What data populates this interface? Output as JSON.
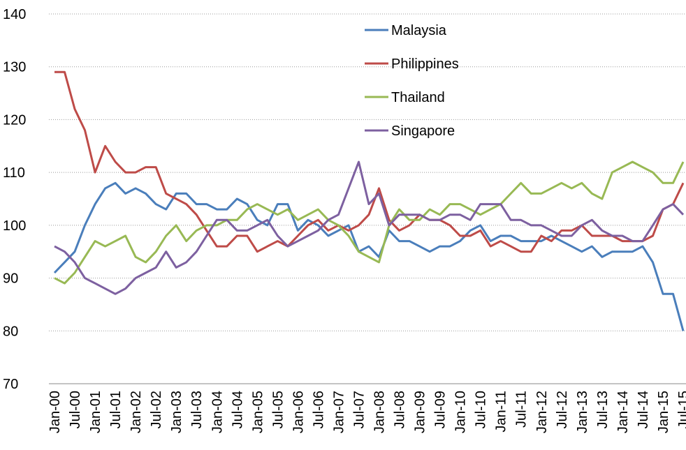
{
  "chart_data": {
    "type": "line",
    "categories": [
      "Jan-00",
      null,
      "Jul-00",
      null,
      "Jan-01",
      null,
      "Jul-01",
      null,
      "Jan-02",
      null,
      "Jul-02",
      null,
      "Jan-03",
      null,
      "Jul-03",
      null,
      "Jan-04",
      null,
      "Jul-04",
      null,
      "Jan-05",
      null,
      "Jul-05",
      null,
      "Jan-06",
      null,
      "Jul-06",
      null,
      "Jan-07",
      null,
      "Jul-07",
      null,
      "Jan-08",
      null,
      "Jul-08",
      null,
      "Jan-09",
      null,
      "Jul-09",
      null,
      "Jan-10",
      null,
      "Jul-10",
      null,
      "Jan-11",
      null,
      "Jul-11",
      null,
      "Jan-12",
      null,
      "Jul-12",
      null,
      "Jan-13",
      null,
      "Jul-13",
      null,
      "Jan-14",
      null,
      "Jul-14",
      null,
      "Jan-15",
      null,
      "Jul-15"
    ],
    "series": [
      {
        "name": "Malaysia",
        "color": "#4a7ebb",
        "values": [
          91,
          93,
          95,
          100,
          104,
          107,
          108,
          106,
          107,
          106,
          104,
          103,
          106,
          106,
          104,
          104,
          103,
          103,
          105,
          104,
          101,
          100,
          104,
          104,
          99,
          101,
          100,
          98,
          99,
          100,
          95,
          96,
          94,
          99,
          97,
          97,
          96,
          95,
          96,
          96,
          97,
          99,
          100,
          97,
          98,
          98,
          97,
          97,
          97,
          98,
          97,
          96,
          95,
          96,
          94,
          95,
          95,
          95,
          96,
          93,
          87,
          87,
          80
        ]
      },
      {
        "name": "Philippines",
        "color": "#be4b48",
        "values": [
          129,
          129,
          122,
          118,
          110,
          115,
          112,
          110,
          110,
          111,
          111,
          106,
          105,
          104,
          102,
          99,
          96,
          96,
          98,
          98,
          95,
          96,
          97,
          96,
          98,
          100,
          101,
          99,
          100,
          99,
          100,
          102,
          107,
          101,
          99,
          100,
          102,
          101,
          101,
          100,
          98,
          98,
          99,
          96,
          97,
          96,
          95,
          95,
          98,
          97,
          99,
          99,
          100,
          98,
          98,
          98,
          97,
          97,
          97,
          98,
          103,
          104,
          108
        ]
      },
      {
        "name": "Thailand",
        "color": "#98b954",
        "values": [
          90,
          89,
          91,
          94,
          97,
          96,
          97,
          98,
          94,
          93,
          95,
          98,
          100,
          97,
          99,
          100,
          100,
          101,
          101,
          103,
          104,
          103,
          102,
          103,
          101,
          102,
          103,
          101,
          100,
          98,
          95,
          94,
          93,
          100,
          103,
          101,
          101,
          103,
          102,
          104,
          104,
          103,
          102,
          103,
          104,
          106,
          108,
          106,
          106,
          107,
          108,
          107,
          108,
          106,
          105,
          110,
          111,
          112,
          111,
          110,
          108,
          108,
          112
        ]
      },
      {
        "name": "Singapore",
        "color": "#7d60a0",
        "values": [
          96,
          95,
          93,
          90,
          89,
          88,
          87,
          88,
          90,
          91,
          92,
          95,
          92,
          93,
          95,
          98,
          101,
          101,
          99,
          99,
          100,
          101,
          98,
          96,
          97,
          98,
          99,
          101,
          102,
          107,
          112,
          104,
          106,
          100,
          102,
          102,
          102,
          101,
          101,
          102,
          102,
          101,
          104,
          104,
          104,
          101,
          101,
          100,
          100,
          99,
          98,
          98,
          100,
          101,
          99,
          98,
          98,
          97,
          97,
          100,
          103,
          104,
          102
        ]
      }
    ],
    "ylim": [
      70,
      140
    ],
    "yticks": [
      70,
      80,
      90,
      100,
      110,
      120,
      130,
      140
    ],
    "grid": true
  }
}
